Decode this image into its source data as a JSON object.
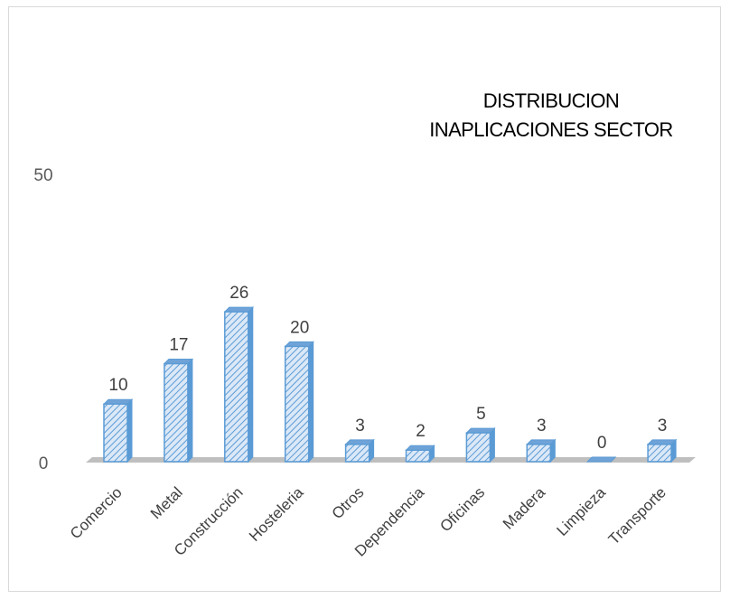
{
  "chart_data": {
    "type": "bar",
    "title_lines": [
      "DISTRIBUCION",
      "INAPLICACIONES SECTOR"
    ],
    "categories": [
      "Comercio",
      "Metal",
      "Construcción",
      "Hosteleria",
      "Otros",
      "Dependencia",
      "Oficinas",
      "Madera",
      "Limpieza",
      "Transporte"
    ],
    "values": [
      10,
      17,
      26,
      20,
      3,
      2,
      5,
      3,
      0,
      3
    ],
    "y_ticks": [
      "0",
      "50"
    ],
    "ylim": [
      0,
      50
    ],
    "xlabel": "",
    "ylabel": "",
    "grid": false,
    "legend": "none",
    "bar_style": "3d-diagonal-hatch",
    "colors": {
      "bar_fill": "#dbe8f7",
      "bar_hatch": "#5b9bd5",
      "bar_edge": "#5b9bd5",
      "bar_top": "#6fa3d8",
      "floor": "#bfbfbf",
      "text": "#404040"
    }
  }
}
